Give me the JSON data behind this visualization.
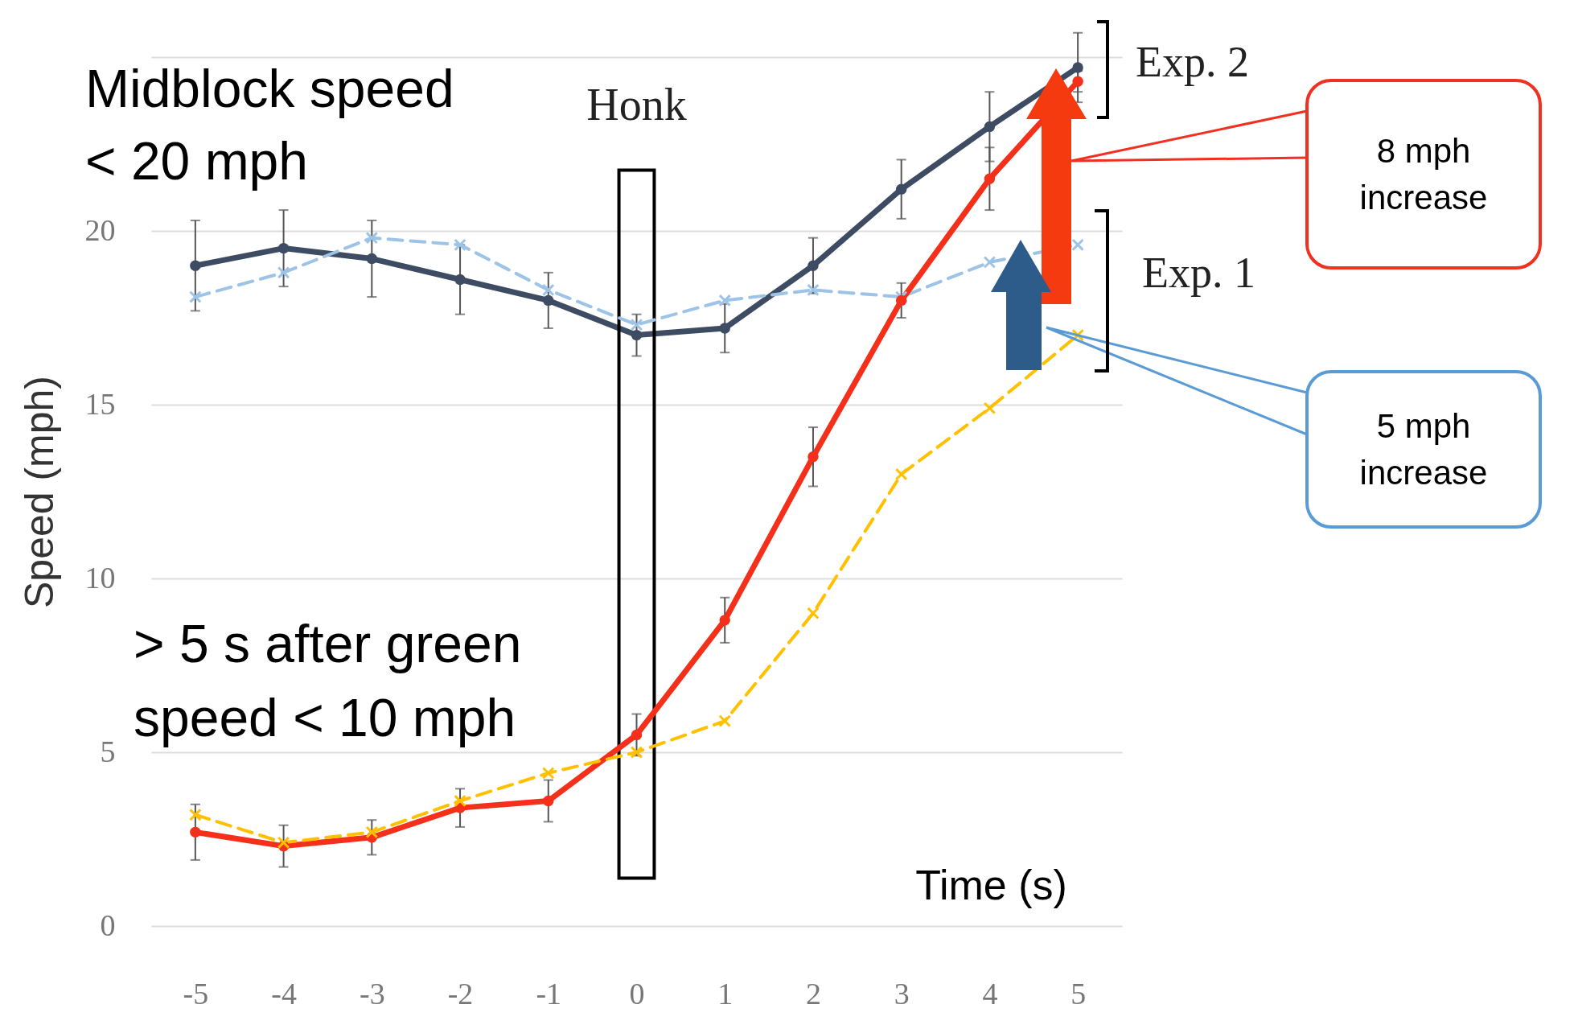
{
  "chart_data": {
    "type": "line",
    "xlabel": "Time (s)",
    "ylabel": "Speed (mph)",
    "x": [
      -5,
      -4,
      -3,
      -2,
      -1,
      0,
      1,
      2,
      3,
      4,
      5
    ],
    "series": [
      {
        "color": "#3d4b63",
        "marker": "circle",
        "line_style": "solid",
        "values": [
          19.0,
          19.5,
          19.2,
          18.6,
          18.0,
          17.0,
          17.2,
          19.0,
          21.2,
          23.0,
          24.7
        ],
        "errors": [
          1.3,
          1.1,
          1.1,
          1.0,
          0.8,
          0.6,
          0.7,
          0.8,
          0.85,
          1.0,
          1.0
        ]
      },
      {
        "color": "#9dc3e6",
        "marker": "cross",
        "line_style": "dashed",
        "values": [
          18.1,
          18.8,
          19.8,
          19.6,
          18.3,
          17.3,
          18.0,
          18.3,
          18.1,
          19.1,
          19.6
        ]
      },
      {
        "color": "#f5301a",
        "marker": "circle",
        "line_style": "solid",
        "values": [
          2.7,
          2.3,
          2.55,
          3.4,
          3.6,
          5.5,
          8.8,
          13.5,
          18.0,
          21.5,
          24.3
        ],
        "errors": [
          0.8,
          0.6,
          0.5,
          0.55,
          0.6,
          0.6,
          0.65,
          0.85,
          0.5,
          0.9,
          0.3
        ]
      },
      {
        "color": "#ffc000",
        "marker": "cross",
        "line_style": "dashed",
        "values": [
          3.2,
          2.4,
          2.7,
          3.6,
          4.4,
          5.0,
          5.9,
          9.0,
          13.0,
          14.9,
          17.0
        ]
      }
    ],
    "xlim": [
      -5.5,
      5.5
    ],
    "xticks": [
      -5,
      -4,
      -3,
      -2,
      -1,
      0,
      1,
      2,
      3,
      4,
      5
    ],
    "ylim": [
      0,
      25
    ],
    "yticks": [
      0,
      5,
      10,
      15,
      20,
      {
        "value": 25,
        "label": null
      }
    ],
    "grid": "y",
    "bands": [
      {
        "axis": "x",
        "from": -0.2,
        "to": 0.2,
        "label": "Honk"
      }
    ],
    "annotations": [
      "Midblock speed < 20 mph",
      "> 5 s after green speed < 10 mph",
      "Exp. 2",
      "Exp. 1",
      "8 mph increase",
      "5 mph increase"
    ]
  }
}
